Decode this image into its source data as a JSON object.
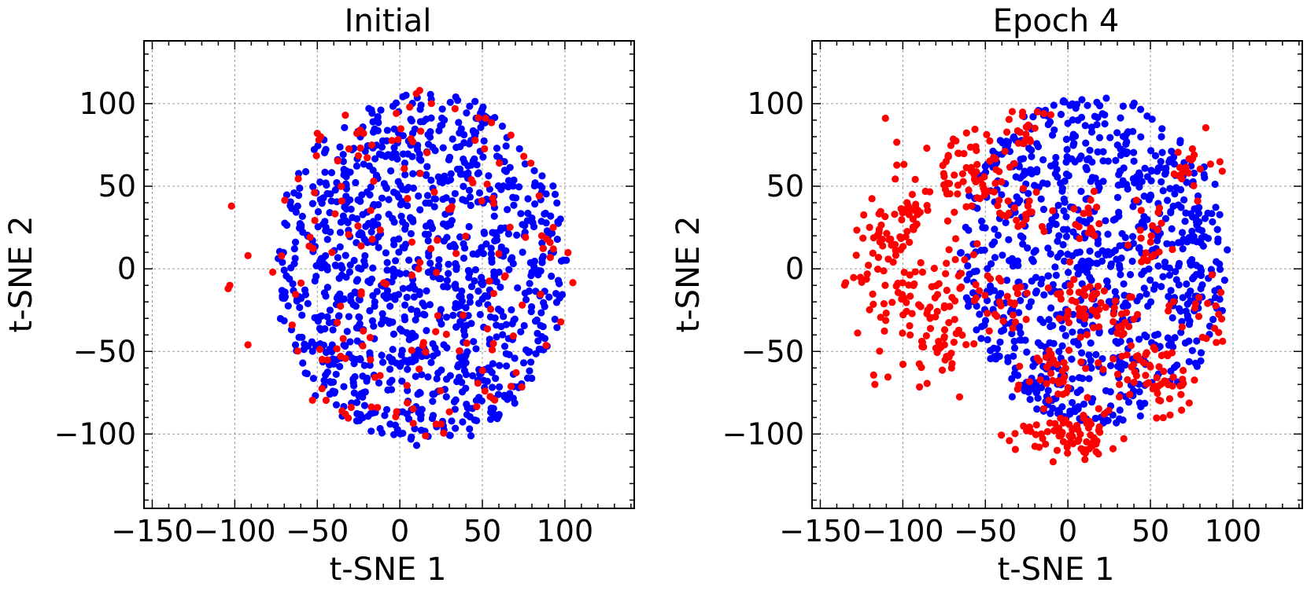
{
  "colors": {
    "series_a": "#0000ff",
    "series_b": "#ff0000",
    "grid": "#999999",
    "axis": "#000000"
  },
  "chart_data": [
    {
      "type": "scatter",
      "title": "Initial",
      "xlabel": "t-SNE 1",
      "ylabel": "t-SNE 2",
      "xlim": [
        -155,
        142
      ],
      "ylim": [
        -145,
        138
      ],
      "xticks": [
        -150,
        -100,
        -50,
        0,
        50,
        100
      ],
      "yticks": [
        -100,
        -50,
        0,
        50,
        100
      ],
      "xtick_labels": [
        "−150",
        "−100",
        "−50",
        "0",
        "50",
        "100"
      ],
      "ytick_labels": [
        "−100",
        "−50",
        "0",
        "50",
        "100"
      ],
      "grid": true,
      "series": [
        {
          "name": "blue",
          "color": "#0000ff",
          "count": 1100,
          "seed": 7,
          "shape": "cloud",
          "center": [
            12,
            0
          ],
          "radius": [
            88,
            108
          ]
        },
        {
          "name": "red",
          "color": "#ff0000",
          "count": 150,
          "seed": 19,
          "shape": "scattered",
          "center": [
            10,
            0
          ],
          "radius": [
            95,
            105
          ],
          "extra_points": [
            [
              -102,
              38
            ],
            [
              -103,
              -10
            ],
            [
              -104,
              -12
            ],
            [
              -92,
              8
            ],
            [
              -92,
              -46
            ],
            [
              -77,
              -2
            ],
            [
              -50,
              82
            ],
            [
              -48,
              80
            ],
            [
              -49,
              78
            ],
            [
              -33,
              93
            ],
            [
              -26,
              82
            ],
            [
              -24,
              84
            ],
            [
              -22,
              82
            ],
            [
              12,
              108
            ],
            [
              10,
              106
            ],
            [
              86,
              20
            ],
            [
              89,
              18
            ],
            [
              91,
              16
            ],
            [
              93,
              12
            ],
            [
              22,
              -94
            ],
            [
              25,
              -94
            ],
            [
              -33,
              -88
            ],
            [
              -35,
              -86
            ]
          ]
        }
      ]
    },
    {
      "type": "scatter",
      "title": "Epoch 4",
      "xlabel": "t-SNE 1",
      "ylabel": "t-SNE 2",
      "xlim": [
        -155,
        142
      ],
      "ylim": [
        -145,
        138
      ],
      "xticks": [
        -150,
        -100,
        -50,
        0,
        50,
        100
      ],
      "yticks": [
        -100,
        -50,
        0,
        50,
        100
      ],
      "xtick_labels": [
        "−150",
        "−100",
        "−50",
        "0",
        "50",
        "100"
      ],
      "ytick_labels": [
        "−100",
        "−50",
        "0",
        "50",
        "100"
      ],
      "grid": true,
      "series": [
        {
          "name": "blue",
          "color": "#0000ff",
          "count": 900,
          "seed": 11,
          "shape": "cloud",
          "center": [
            15,
            5
          ],
          "radius": [
            80,
            100
          ]
        },
        {
          "name": "red",
          "color": "#ff0000",
          "count": 650,
          "seed": 23,
          "shape": "clusters",
          "clusters": [
            [
              -60,
              57,
              12,
              11,
              70
            ],
            [
              -110,
              5,
              12,
              28,
              90
            ],
            [
              -85,
              -30,
              10,
              14,
              40
            ],
            [
              -95,
              35,
              8,
              6,
              18
            ],
            [
              -75,
              -50,
              8,
              10,
              25
            ],
            [
              -25,
              85,
              6,
              8,
              20
            ],
            [
              -5,
              -100,
              12,
              7,
              55
            ],
            [
              15,
              -100,
              8,
              8,
              25
            ],
            [
              -10,
              -65,
              10,
              10,
              35
            ],
            [
              5,
              -20,
              10,
              10,
              40
            ],
            [
              45,
              -60,
              12,
              10,
              40
            ],
            [
              60,
              -75,
              10,
              10,
              25
            ],
            [
              75,
              60,
              8,
              8,
              20
            ],
            [
              80,
              -30,
              8,
              10,
              20
            ],
            [
              -30,
              30,
              8,
              8,
              20
            ],
            [
              10,
              30,
              8,
              8,
              15
            ],
            [
              50,
              15,
              8,
              10,
              20
            ],
            [
              -40,
              -20,
              10,
              10,
              25
            ],
            [
              30,
              -30,
              8,
              8,
              20
            ],
            [
              -65,
              0,
              8,
              8,
              15
            ]
          ]
        }
      ]
    }
  ]
}
